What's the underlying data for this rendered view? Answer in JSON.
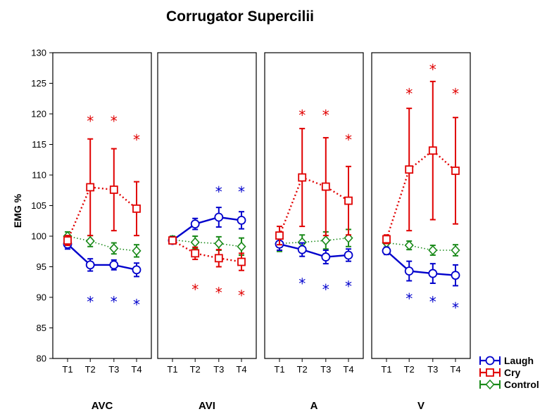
{
  "chart_data": {
    "type": "line",
    "title": "Corrugator Supercilii",
    "ylabel": "EMG %",
    "ylim": [
      80,
      130
    ],
    "yticks": [
      80,
      85,
      90,
      95,
      100,
      105,
      110,
      115,
      120,
      125,
      130
    ],
    "categories": [
      "T1",
      "T2",
      "T3",
      "T4"
    ],
    "legend": {
      "position": "bottom-right"
    },
    "colors": {
      "Laugh": "#0000cc",
      "Cry": "#e00000",
      "Control": "#1a8a1a"
    },
    "panels": [
      {
        "name": "AVC",
        "series": [
          {
            "name": "Laugh",
            "values": [
              98.7,
              95.3,
              95.3,
              94.5
            ],
            "err": [
              0.8,
              1.0,
              0.8,
              1.1
            ]
          },
          {
            "name": "Cry",
            "values": [
              99.3,
              108.0,
              107.6,
              104.5
            ],
            "err": [
              0.8,
              7.9,
              6.7,
              4.4
            ]
          },
          {
            "name": "Control",
            "values": [
              100.0,
              99.2,
              98.0,
              97.6
            ],
            "err": [
              0.7,
              0.9,
              0.9,
              1.0
            ]
          }
        ],
        "annotations": [
          {
            "series": "Cry",
            "x": "T2",
            "y": 119,
            "text": "*"
          },
          {
            "series": "Cry",
            "x": "T3",
            "y": 119,
            "text": "*"
          },
          {
            "series": "Cry",
            "x": "T4",
            "y": 116,
            "text": "*"
          },
          {
            "series": "Laugh",
            "x": "T2",
            "y": 89.5,
            "text": "*"
          },
          {
            "series": "Laugh",
            "x": "T3",
            "y": 89.5,
            "text": "*"
          },
          {
            "series": "Laugh",
            "x": "T4",
            "y": 89,
            "text": "*"
          }
        ]
      },
      {
        "name": "AVI",
        "series": [
          {
            "name": "Laugh",
            "values": [
              99.3,
              102.0,
              103.1,
              102.6
            ],
            "err": [
              0.4,
              0.9,
              1.6,
              1.4
            ]
          },
          {
            "name": "Cry",
            "values": [
              99.3,
              97.2,
              96.4,
              95.8
            ],
            "err": [
              0.4,
              1.0,
              1.4,
              1.4
            ]
          },
          {
            "name": "Control",
            "values": [
              99.4,
              99.0,
              98.8,
              98.3
            ],
            "err": [
              0.6,
              1.0,
              1.1,
              1.4
            ]
          }
        ],
        "annotations": [
          {
            "series": "Laugh",
            "x": "T3",
            "y": 107.5,
            "text": "*"
          },
          {
            "series": "Laugh",
            "x": "T4",
            "y": 107.5,
            "text": "*"
          },
          {
            "series": "Cry",
            "x": "T2",
            "y": 91.5,
            "text": "*"
          },
          {
            "series": "Cry",
            "x": "T3",
            "y": 91,
            "text": "*"
          },
          {
            "series": "Cry",
            "x": "T4",
            "y": 90.5,
            "text": "*"
          }
        ]
      },
      {
        "name": "A",
        "series": [
          {
            "name": "Laugh",
            "values": [
              98.7,
              97.8,
              96.6,
              96.9
            ],
            "err": [
              1.0,
              1.1,
              1.1,
              1.0
            ]
          },
          {
            "name": "Cry",
            "values": [
              100.1,
              109.6,
              108.1,
              105.8
            ],
            "err": [
              1.5,
              8.0,
              8.0,
              5.6
            ]
          },
          {
            "name": "Control",
            "values": [
              98.8,
              99.0,
              99.3,
              99.7
            ],
            "err": [
              1.3,
              1.2,
              1.4,
              1.4
            ]
          }
        ],
        "annotations": [
          {
            "series": "Cry",
            "x": "T2",
            "y": 120,
            "text": "*"
          },
          {
            "series": "Cry",
            "x": "T3",
            "y": 120,
            "text": "*"
          },
          {
            "series": "Cry",
            "x": "T4",
            "y": 116,
            "text": "*"
          },
          {
            "series": "Laugh",
            "x": "T2",
            "y": 92.5,
            "text": "*"
          },
          {
            "series": "Laugh",
            "x": "T3",
            "y": 91.5,
            "text": "*"
          },
          {
            "series": "Laugh",
            "x": "T4",
            "y": 92,
            "text": "*"
          }
        ]
      },
      {
        "name": "V",
        "series": [
          {
            "name": "Laugh",
            "values": [
              97.6,
              94.3,
              93.9,
              93.6
            ],
            "err": [
              0.6,
              1.6,
              1.6,
              1.7
            ]
          },
          {
            "name": "Cry",
            "values": [
              99.5,
              110.9,
              114.0,
              110.7
            ],
            "err": [
              0.7,
              10.0,
              11.3,
              8.7
            ]
          },
          {
            "name": "Control",
            "values": [
              98.9,
              98.5,
              97.7,
              97.7
            ],
            "err": [
              0.7,
              0.7,
              0.8,
              0.9
            ]
          }
        ],
        "annotations": [
          {
            "series": "Cry",
            "x": "T2",
            "y": 123.5,
            "text": "*"
          },
          {
            "series": "Cry",
            "x": "T3",
            "y": 127.5,
            "text": "*"
          },
          {
            "series": "Cry",
            "x": "T4",
            "y": 123.5,
            "text": "*"
          },
          {
            "series": "Laugh",
            "x": "T2",
            "y": 90,
            "text": "*"
          },
          {
            "series": "Laugh",
            "x": "T3",
            "y": 89.5,
            "text": "*"
          },
          {
            "series": "Laugh",
            "x": "T4",
            "y": 88.5,
            "text": "*"
          }
        ]
      }
    ]
  }
}
